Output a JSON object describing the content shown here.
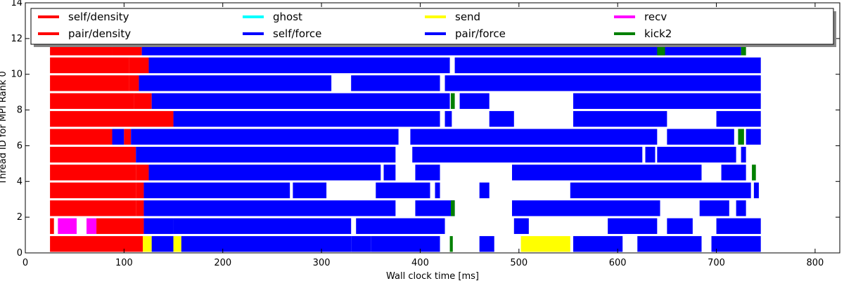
{
  "chart_data": {
    "type": "bar",
    "orientation": "horizontal-timeline",
    "xlabel": "Wall clock time [ms]",
    "ylabel": "Thread ID for MPI Rank 0",
    "xlim": [
      0,
      825
    ],
    "ylim": [
      0,
      14
    ],
    "x_ticks": [
      0,
      100,
      200,
      300,
      400,
      500,
      600,
      700,
      800
    ],
    "y_ticks": [
      0,
      2,
      4,
      6,
      8,
      10,
      12,
      14
    ],
    "grid": false,
    "legend_position": "top",
    "legend": [
      {
        "name": "self/density",
        "color": "#ff0000"
      },
      {
        "name": "pair/density",
        "color": "#ff0000"
      },
      {
        "name": "ghost",
        "color": "#00ffff"
      },
      {
        "name": "self/force",
        "color": "#0000ff"
      },
      {
        "name": "send",
        "color": "#ffff00"
      },
      {
        "name": "pair/force",
        "color": "#0000ff"
      },
      {
        "name": "recv",
        "color": "#ff00ff"
      },
      {
        "name": "kick2",
        "color": "#008000"
      }
    ],
    "threads": [
      {
        "y": 0.5,
        "segments": [
          {
            "start": 25,
            "end": 119,
            "task": "self/density"
          },
          {
            "start": 119,
            "end": 128,
            "task": "send"
          },
          {
            "start": 128,
            "end": 150,
            "task": "pair/force"
          },
          {
            "start": 150,
            "end": 158,
            "task": "send"
          },
          {
            "start": 158,
            "end": 330,
            "task": "pair/force"
          },
          {
            "start": 330,
            "end": 350,
            "task": "pair/force"
          },
          {
            "start": 350,
            "end": 420,
            "task": "pair/force"
          },
          {
            "start": 430,
            "end": 433,
            "task": "kick2"
          },
          {
            "start": 460,
            "end": 475,
            "task": "pair/force"
          },
          {
            "start": 502,
            "end": 552,
            "task": "send"
          },
          {
            "start": 555,
            "end": 605,
            "task": "pair/force"
          },
          {
            "start": 620,
            "end": 685,
            "task": "pair/force"
          },
          {
            "start": 695,
            "end": 745,
            "task": "pair/force"
          }
        ]
      },
      {
        "y": 1.5,
        "segments": [
          {
            "start": 25,
            "end": 29,
            "task": "self/density"
          },
          {
            "start": 33,
            "end": 52,
            "task": "recv"
          },
          {
            "start": 62,
            "end": 72,
            "task": "recv"
          },
          {
            "start": 72,
            "end": 120,
            "task": "self/density"
          },
          {
            "start": 120,
            "end": 150,
            "task": "pair/force"
          },
          {
            "start": 150,
            "end": 330,
            "task": "pair/force"
          },
          {
            "start": 335,
            "end": 425,
            "task": "pair/force"
          },
          {
            "start": 495,
            "end": 510,
            "task": "pair/force"
          },
          {
            "start": 590,
            "end": 640,
            "task": "pair/force"
          },
          {
            "start": 650,
            "end": 676,
            "task": "pair/force"
          },
          {
            "start": 700,
            "end": 745,
            "task": "pair/force"
          }
        ]
      },
      {
        "y": 2.5,
        "segments": [
          {
            "start": 25,
            "end": 112,
            "task": "self/density"
          },
          {
            "start": 112,
            "end": 120,
            "task": "pair/density"
          },
          {
            "start": 120,
            "end": 375,
            "task": "pair/force"
          },
          {
            "start": 395,
            "end": 435,
            "task": "pair/force"
          },
          {
            "start": 431,
            "end": 435,
            "task": "kick2"
          },
          {
            "start": 493,
            "end": 643,
            "task": "pair/force"
          },
          {
            "start": 683,
            "end": 713,
            "task": "pair/force"
          },
          {
            "start": 720,
            "end": 730,
            "task": "pair/force"
          }
        ]
      },
      {
        "y": 3.5,
        "segments": [
          {
            "start": 25,
            "end": 112,
            "task": "self/density"
          },
          {
            "start": 112,
            "end": 120,
            "task": "pair/density"
          },
          {
            "start": 120,
            "end": 268,
            "task": "pair/force"
          },
          {
            "start": 271,
            "end": 305,
            "task": "pair/force"
          },
          {
            "start": 355,
            "end": 410,
            "task": "pair/force"
          },
          {
            "start": 415,
            "end": 420,
            "task": "pair/force"
          },
          {
            "start": 460,
            "end": 470,
            "task": "pair/force"
          },
          {
            "start": 552,
            "end": 735,
            "task": "pair/force"
          },
          {
            "start": 738,
            "end": 743,
            "task": "pair/force"
          }
        ]
      },
      {
        "y": 4.5,
        "segments": [
          {
            "start": 25,
            "end": 112,
            "task": "self/density"
          },
          {
            "start": 112,
            "end": 125,
            "task": "pair/density"
          },
          {
            "start": 125,
            "end": 360,
            "task": "pair/force"
          },
          {
            "start": 363,
            "end": 375,
            "task": "pair/force"
          },
          {
            "start": 395,
            "end": 420,
            "task": "pair/force"
          },
          {
            "start": 493,
            "end": 685,
            "task": "pair/force"
          },
          {
            "start": 705,
            "end": 730,
            "task": "pair/force"
          },
          {
            "start": 736,
            "end": 740,
            "task": "kick2"
          }
        ]
      },
      {
        "y": 5.5,
        "segments": [
          {
            "start": 25,
            "end": 112,
            "task": "self/density"
          },
          {
            "start": 112,
            "end": 375,
            "task": "pair/force"
          },
          {
            "start": 392,
            "end": 625,
            "task": "pair/force"
          },
          {
            "start": 628,
            "end": 638,
            "task": "pair/force"
          },
          {
            "start": 640,
            "end": 720,
            "task": "pair/force"
          },
          {
            "start": 725,
            "end": 730,
            "task": "pair/force"
          }
        ]
      },
      {
        "y": 6.5,
        "segments": [
          {
            "start": 25,
            "end": 88,
            "task": "self/density"
          },
          {
            "start": 88,
            "end": 100,
            "task": "pair/force"
          },
          {
            "start": 100,
            "end": 107,
            "task": "pair/density"
          },
          {
            "start": 107,
            "end": 378,
            "task": "pair/force"
          },
          {
            "start": 390,
            "end": 640,
            "task": "pair/force"
          },
          {
            "start": 650,
            "end": 718,
            "task": "pair/force"
          },
          {
            "start": 722,
            "end": 728,
            "task": "kick2"
          },
          {
            "start": 730,
            "end": 745,
            "task": "pair/force"
          }
        ]
      },
      {
        "y": 7.5,
        "segments": [
          {
            "start": 25,
            "end": 150,
            "task": "self/density"
          },
          {
            "start": 150,
            "end": 420,
            "task": "pair/force"
          },
          {
            "start": 425,
            "end": 432,
            "task": "pair/force"
          },
          {
            "start": 470,
            "end": 495,
            "task": "pair/force"
          },
          {
            "start": 555,
            "end": 650,
            "task": "pair/force"
          },
          {
            "start": 700,
            "end": 745,
            "task": "pair/force"
          }
        ]
      },
      {
        "y": 8.5,
        "segments": [
          {
            "start": 25,
            "end": 110,
            "task": "self/density"
          },
          {
            "start": 110,
            "end": 128,
            "task": "pair/density"
          },
          {
            "start": 128,
            "end": 430,
            "task": "pair/force"
          },
          {
            "start": 431,
            "end": 435,
            "task": "kick2"
          },
          {
            "start": 440,
            "end": 470,
            "task": "pair/force"
          },
          {
            "start": 555,
            "end": 745,
            "task": "pair/force"
          }
        ]
      },
      {
        "y": 9.5,
        "segments": [
          {
            "start": 25,
            "end": 105,
            "task": "self/density"
          },
          {
            "start": 105,
            "end": 115,
            "task": "pair/density"
          },
          {
            "start": 115,
            "end": 310,
            "task": "pair/force"
          },
          {
            "start": 330,
            "end": 420,
            "task": "pair/force"
          },
          {
            "start": 425,
            "end": 745,
            "task": "pair/force"
          }
        ]
      },
      {
        "y": 10.5,
        "segments": [
          {
            "start": 25,
            "end": 105,
            "task": "self/density"
          },
          {
            "start": 105,
            "end": 125,
            "task": "pair/density"
          },
          {
            "start": 125,
            "end": 430,
            "task": "pair/force"
          },
          {
            "start": 435,
            "end": 745,
            "task": "pair/force"
          }
        ]
      },
      {
        "y": 11.5,
        "segments": [
          {
            "start": 25,
            "end": 88,
            "task": "self/density"
          },
          {
            "start": 88,
            "end": 118,
            "task": "pair/density"
          },
          {
            "start": 118,
            "end": 725,
            "task": "pair/force"
          },
          {
            "start": 640,
            "end": 648,
            "task": "kick2"
          },
          {
            "start": 725,
            "end": 730,
            "task": "kick2"
          }
        ]
      }
    ]
  }
}
